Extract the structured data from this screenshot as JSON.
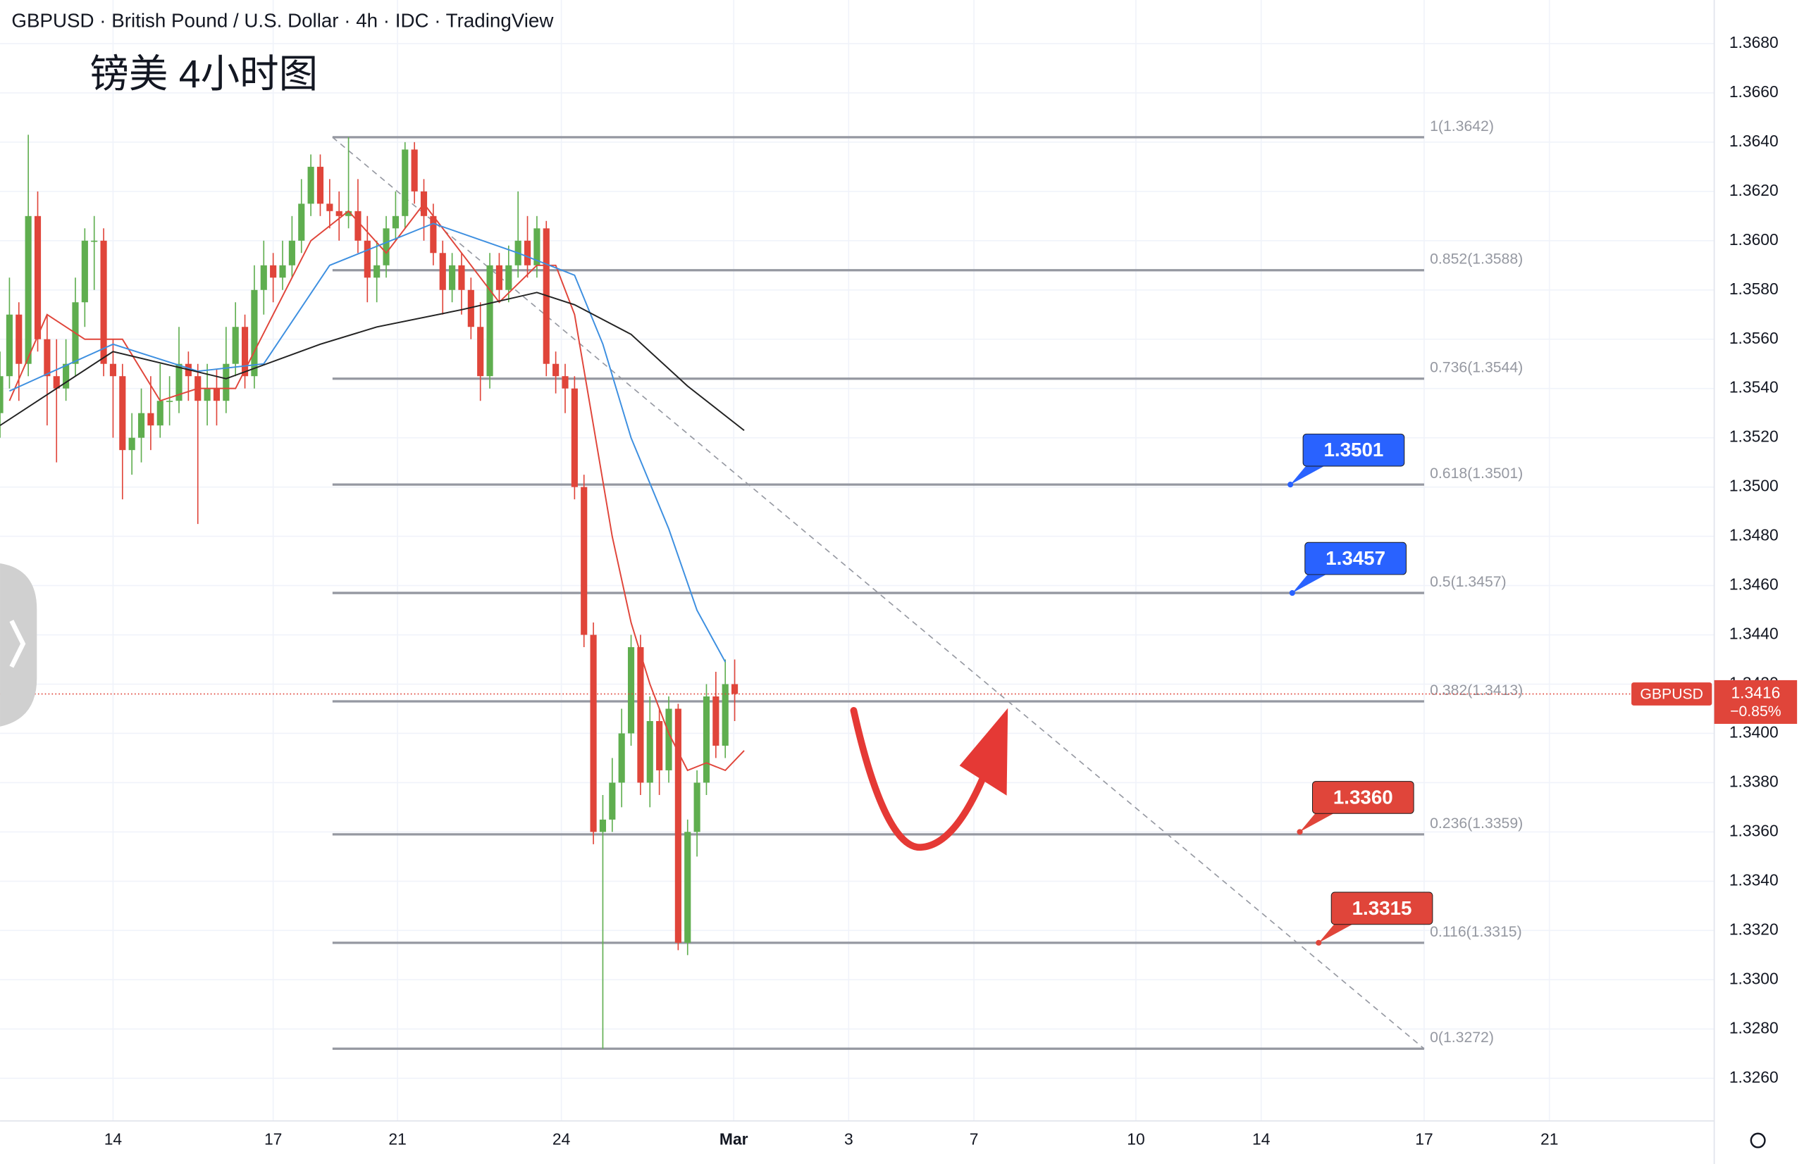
{
  "header": "GBPUSD · British Pound / U.S. Dollar · 4h · IDC · TradingView",
  "chart_data": {
    "type": "candlestick",
    "title": "镑美 4小时图",
    "up_color": "#5fae4f",
    "down_color": "#e0453a",
    "ohlc": [
      [
        1.353,
        1.3555,
        1.352,
        1.3545
      ],
      [
        1.3545,
        1.3585,
        1.354,
        1.357
      ],
      [
        1.357,
        1.3575,
        1.3535,
        1.355
      ],
      [
        1.355,
        1.3643,
        1.3545,
        1.361
      ],
      [
        1.361,
        1.362,
        1.3555,
        1.356
      ],
      [
        1.356,
        1.357,
        1.3525,
        1.3545
      ],
      [
        1.3545,
        1.356,
        1.351,
        1.354
      ],
      [
        1.354,
        1.356,
        1.3535,
        1.355
      ],
      [
        1.355,
        1.3585,
        1.3545,
        1.3575
      ],
      [
        1.3575,
        1.3605,
        1.3565,
        1.36
      ],
      [
        1.36,
        1.361,
        1.358,
        1.36
      ],
      [
        1.36,
        1.3605,
        1.3545,
        1.355
      ],
      [
        1.355,
        1.356,
        1.352,
        1.3545
      ],
      [
        1.3545,
        1.355,
        1.3495,
        1.3515
      ],
      [
        1.3515,
        1.353,
        1.3505,
        1.352
      ],
      [
        1.352,
        1.354,
        1.351,
        1.353
      ],
      [
        1.353,
        1.3545,
        1.3515,
        1.3525
      ],
      [
        1.3525,
        1.355,
        1.352,
        1.3535
      ],
      [
        1.3535,
        1.3545,
        1.3525,
        1.3535
      ],
      [
        1.3535,
        1.3565,
        1.353,
        1.355
      ],
      [
        1.355,
        1.3555,
        1.3535,
        1.3545
      ],
      [
        1.3545,
        1.355,
        1.3485,
        1.3535
      ],
      [
        1.3535,
        1.355,
        1.3525,
        1.354
      ],
      [
        1.354,
        1.3548,
        1.3525,
        1.3535
      ],
      [
        1.3535,
        1.3565,
        1.353,
        1.355
      ],
      [
        1.355,
        1.3575,
        1.3545,
        1.3565
      ],
      [
        1.3565,
        1.357,
        1.354,
        1.3545
      ],
      [
        1.3545,
        1.359,
        1.354,
        1.358
      ],
      [
        1.358,
        1.36,
        1.357,
        1.359
      ],
      [
        1.359,
        1.3595,
        1.3575,
        1.3585
      ],
      [
        1.3585,
        1.36,
        1.358,
        1.359
      ],
      [
        1.359,
        1.361,
        1.3585,
        1.36
      ],
      [
        1.36,
        1.3625,
        1.3595,
        1.3615
      ],
      [
        1.3615,
        1.3635,
        1.361,
        1.363
      ],
      [
        1.363,
        1.3635,
        1.361,
        1.3615
      ],
      [
        1.3615,
        1.3625,
        1.3605,
        1.3612
      ],
      [
        1.3612,
        1.362,
        1.36,
        1.361
      ],
      [
        1.361,
        1.3642,
        1.3605,
        1.3612
      ],
      [
        1.3612,
        1.3625,
        1.3595,
        1.36
      ],
      [
        1.36,
        1.361,
        1.3575,
        1.3585
      ],
      [
        1.3585,
        1.36,
        1.3575,
        1.359
      ],
      [
        1.359,
        1.361,
        1.3585,
        1.3605
      ],
      [
        1.3605,
        1.362,
        1.36,
        1.361
      ],
      [
        1.361,
        1.364,
        1.3605,
        1.3637
      ],
      [
        1.3637,
        1.364,
        1.3615,
        1.362
      ],
      [
        1.362,
        1.3625,
        1.36,
        1.361
      ],
      [
        1.361,
        1.3615,
        1.359,
        1.3595
      ],
      [
        1.3595,
        1.36,
        1.357,
        1.358
      ],
      [
        1.358,
        1.3595,
        1.3575,
        1.359
      ],
      [
        1.359,
        1.3595,
        1.357,
        1.358
      ],
      [
        1.358,
        1.3585,
        1.356,
        1.3565
      ],
      [
        1.3565,
        1.3575,
        1.3535,
        1.3545
      ],
      [
        1.3545,
        1.3595,
        1.354,
        1.359
      ],
      [
        1.359,
        1.3595,
        1.3575,
        1.358
      ],
      [
        1.358,
        1.3598,
        1.3575,
        1.359
      ],
      [
        1.359,
        1.362,
        1.3585,
        1.36
      ],
      [
        1.36,
        1.361,
        1.3585,
        1.359
      ],
      [
        1.359,
        1.361,
        1.3585,
        1.3605
      ],
      [
        1.3605,
        1.3608,
        1.3545,
        1.355
      ],
      [
        1.355,
        1.3555,
        1.3538,
        1.3545
      ],
      [
        1.3545,
        1.355,
        1.353,
        1.354
      ],
      [
        1.354,
        1.3545,
        1.3495,
        1.35
      ],
      [
        1.35,
        1.3505,
        1.3435,
        1.344
      ],
      [
        1.344,
        1.3445,
        1.3355,
        1.336
      ],
      [
        1.336,
        1.3375,
        1.3272,
        1.3365
      ],
      [
        1.3365,
        1.339,
        1.336,
        1.338
      ],
      [
        1.338,
        1.341,
        1.337,
        1.34
      ],
      [
        1.34,
        1.344,
        1.3395,
        1.3435
      ],
      [
        1.3435,
        1.344,
        1.3375,
        1.338
      ],
      [
        1.338,
        1.3415,
        1.337,
        1.3405
      ],
      [
        1.3405,
        1.341,
        1.3375,
        1.3385
      ],
      [
        1.3385,
        1.3415,
        1.338,
        1.341
      ],
      [
        1.341,
        1.3412,
        1.3312,
        1.3315
      ],
      [
        1.3315,
        1.3365,
        1.331,
        1.336
      ],
      [
        1.336,
        1.3385,
        1.335,
        1.338
      ],
      [
        1.338,
        1.342,
        1.3375,
        1.3415
      ],
      [
        1.3415,
        1.3425,
        1.339,
        1.3395
      ],
      [
        1.3395,
        1.343,
        1.339,
        1.342
      ],
      [
        1.342,
        1.343,
        1.3405,
        1.3416
      ]
    ],
    "moving_averages": [
      {
        "color": "#e0453a",
        "x": [
          1,
          5,
          9,
          13,
          17,
          21,
          25,
          29,
          33,
          37,
          41,
          45,
          49,
          53,
          57,
          59,
          61,
          63,
          65,
          67,
          69,
          71,
          73,
          75,
          77,
          79
        ],
        "values": [
          1.3535,
          1.357,
          1.356,
          1.356,
          1.3535,
          1.354,
          1.354,
          1.357,
          1.36,
          1.3612,
          1.3595,
          1.3615,
          1.3595,
          1.3575,
          1.359,
          1.359,
          1.357,
          1.3525,
          1.348,
          1.3445,
          1.342,
          1.34,
          1.3385,
          1.3388,
          1.3385,
          1.3393
        ]
      },
      {
        "color": "#3d8fe0",
        "x": [
          1,
          12,
          21,
          28,
          35,
          46,
          55,
          61,
          64,
          67,
          71,
          74,
          77
        ],
        "values": [
          1.3539,
          1.3558,
          1.3547,
          1.355,
          1.359,
          1.3607,
          1.3595,
          1.3586,
          1.3558,
          1.352,
          1.3483,
          1.345,
          1.3429
        ]
      },
      {
        "color": "#222222",
        "x": [
          0,
          12,
          24,
          34,
          40,
          49,
          57,
          61,
          67,
          73,
          79
        ],
        "values": [
          1.3525,
          1.3555,
          1.3544,
          1.3558,
          1.3565,
          1.3572,
          1.3579,
          1.3574,
          1.3562,
          1.3541,
          1.3523
        ]
      }
    ],
    "xlim": [
      0,
      182
    ],
    "xticks": [
      {
        "value": 12,
        "label": "14"
      },
      {
        "value": 29,
        "label": "17"
      },
      {
        "value": 42.2,
        "label": "21"
      },
      {
        "value": 59.6,
        "label": "24"
      },
      {
        "value": 77.9,
        "label": "Mar"
      },
      {
        "value": 90.1,
        "label": "3"
      },
      {
        "value": 103.4,
        "label": "7"
      },
      {
        "value": 120.6,
        "label": "10"
      },
      {
        "value": 133.9,
        "label": "14"
      },
      {
        "value": 151.2,
        "label": "17"
      },
      {
        "value": 164.5,
        "label": "21"
      }
    ],
    "ylim": [
      1.32427,
      1.36977
    ],
    "yticks": [
      {
        "value": 1.326,
        "label": "1.3260"
      },
      {
        "value": 1.328,
        "label": "1.3280"
      },
      {
        "value": 1.33,
        "label": "1.3300"
      },
      {
        "value": 1.332,
        "label": "1.3320"
      },
      {
        "value": 1.334,
        "label": "1.3340"
      },
      {
        "value": 1.336,
        "label": "1.3360"
      },
      {
        "value": 1.338,
        "label": "1.3380"
      },
      {
        "value": 1.34,
        "label": "1.3400"
      },
      {
        "value": 1.342,
        "label": "1.3420"
      },
      {
        "value": 1.344,
        "label": "1.3440"
      },
      {
        "value": 1.346,
        "label": "1.3460"
      },
      {
        "value": 1.348,
        "label": "1.3480"
      },
      {
        "value": 1.35,
        "label": "1.3500"
      },
      {
        "value": 1.352,
        "label": "1.3520"
      },
      {
        "value": 1.354,
        "label": "1.3540"
      },
      {
        "value": 1.356,
        "label": "1.3560"
      },
      {
        "value": 1.358,
        "label": "1.3580"
      },
      {
        "value": 1.36,
        "label": "1.3600"
      },
      {
        "value": 1.362,
        "label": "1.3620"
      },
      {
        "value": 1.364,
        "label": "1.3640"
      },
      {
        "value": 1.366,
        "label": "1.3660"
      },
      {
        "value": 1.368,
        "label": "1.3680"
      }
    ],
    "grid": true,
    "fib_x": [
      35.3,
      151.2
    ],
    "fib_levels": [
      {
        "value": 1.3642,
        "label": "1(1.3642)"
      },
      {
        "value": 1.3588,
        "label": "0.852(1.3588)"
      },
      {
        "value": 1.3544,
        "label": "0.736(1.3544)"
      },
      {
        "value": 1.3501,
        "label": "0.618(1.3501)"
      },
      {
        "value": 1.3457,
        "label": "0.5(1.3457)"
      },
      {
        "value": 1.3413,
        "label": "0.382(1.3413)"
      },
      {
        "value": 1.3359,
        "label": "0.236(1.3359)"
      },
      {
        "value": 1.3315,
        "label": "0.116(1.3315)"
      },
      {
        "value": 1.3272,
        "label": "0(1.3272)"
      }
    ],
    "callouts": [
      {
        "x": 137,
        "value": 1.3501,
        "color": "#2962ff"
      },
      {
        "x": 137.2,
        "value": 1.3457,
        "color": "#2962ff"
      },
      {
        "x": 138,
        "value": {
          "value": 1.336,
          "label": "1.3360"
        },
        "color": "#e0453a"
      },
      {
        "x": 140,
        "value": 1.3315,
        "color": "#e0453a"
      }
    ],
    "last_price": {
      "symbol": "GBPUSD",
      "value": 1.3416,
      "change": {
        "value": -0.85,
        "label": "−0.85%"
      },
      "color": "#e0453a"
    }
  }
}
